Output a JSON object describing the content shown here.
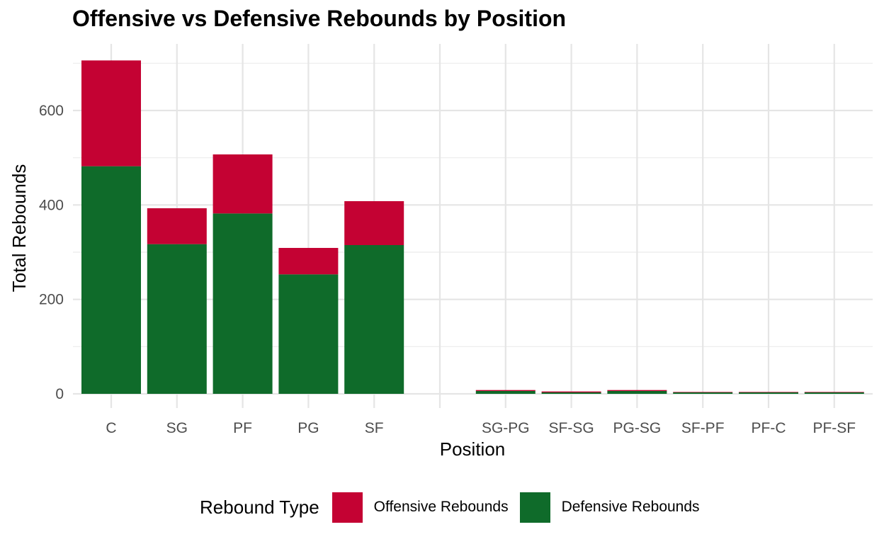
{
  "chart_data": {
    "type": "bar",
    "stacked": true,
    "title": "Offensive vs Defensive Rebounds by Position",
    "xlabel": "Position",
    "ylabel": "Total Rebounds",
    "categories": [
      "C",
      "SG",
      "PF",
      "PG",
      "SF",
      "",
      "SG-PG",
      "SF-SG",
      "PG-SG",
      "SF-PF",
      "PF-C",
      "PF-SF"
    ],
    "series": [
      {
        "name": "Defensive Rebounds",
        "color": "#0f6b2a",
        "values": [
          482,
          317,
          382,
          253,
          315,
          0,
          6,
          3,
          6,
          3,
          3,
          3
        ]
      },
      {
        "name": "Offensive Rebounds",
        "color": "#c40233",
        "values": [
          224,
          76,
          125,
          56,
          93,
          0,
          2,
          2,
          2,
          1,
          1,
          1
        ]
      }
    ],
    "ylim": [
      0,
      740
    ],
    "yticks": [
      0,
      200,
      400,
      600
    ],
    "grid": true,
    "legend": {
      "title": "Rebound Type",
      "position": "bottom",
      "order": [
        "Offensive Rebounds",
        "Defensive Rebounds"
      ]
    }
  }
}
